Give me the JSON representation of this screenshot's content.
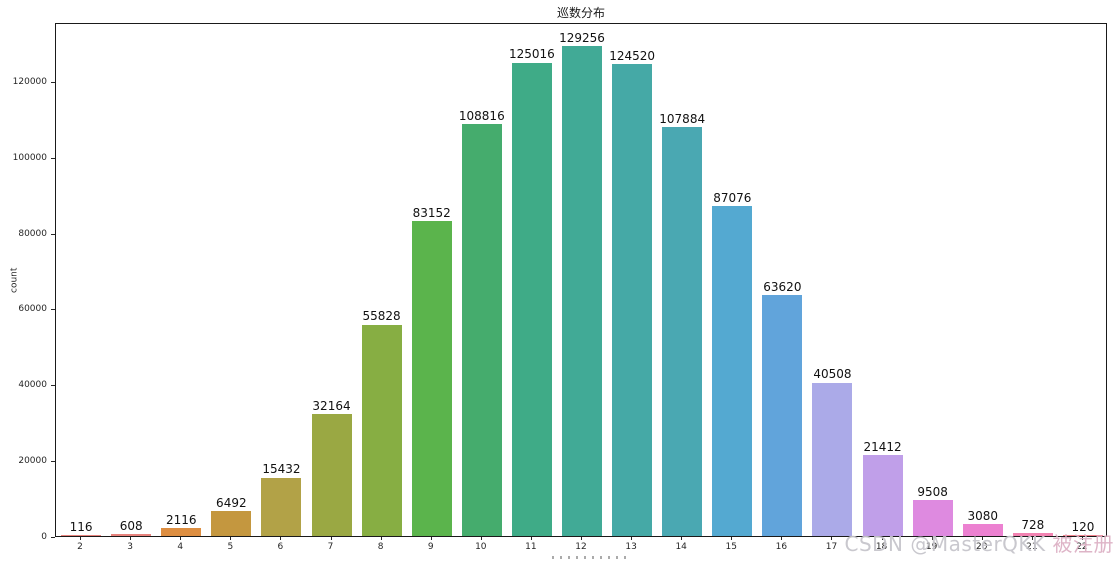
{
  "chart_data": {
    "type": "bar",
    "title": "巡数分布",
    "ylabel": "count",
    "xlabel_clipped": true,
    "categories": [
      "2",
      "3",
      "4",
      "5",
      "6",
      "7",
      "8",
      "9",
      "10",
      "11",
      "12",
      "13",
      "14",
      "15",
      "16",
      "17",
      "18",
      "19",
      "20",
      "21",
      "22"
    ],
    "values": [
      116,
      608,
      2116,
      6492,
      15432,
      32164,
      55828,
      83152,
      108816,
      125016,
      129256,
      124520,
      107884,
      87076,
      63620,
      40508,
      21412,
      9508,
      3080,
      728,
      120
    ],
    "value_labels": [
      "116",
      "608",
      "2116",
      "6492",
      "15432",
      "32164",
      "55828",
      "83152",
      "108816",
      "125016",
      "129256",
      "124520",
      "107884",
      "87076",
      "63620",
      "40508",
      "21412",
      "9508",
      "3080",
      "728",
      "120"
    ],
    "bar_colors": [
      "#e8837d",
      "#e8837d",
      "#dd8e41",
      "#c4973f",
      "#b2a247",
      "#9aa843",
      "#87ae43",
      "#5bb44c",
      "#45ac6d",
      "#3fab87",
      "#41aa96",
      "#45a9a6",
      "#4aa8b2",
      "#54a9d1",
      "#61a4db",
      "#abaae8",
      "#c09fe9",
      "#de8ae0",
      "#ec81d1",
      "#f283b2",
      "#f4838d"
    ],
    "y_ticks": [
      0,
      20000,
      40000,
      60000,
      80000,
      100000,
      120000
    ],
    "y_tick_labels": [
      "0",
      "20000",
      "40000",
      "60000",
      "80000",
      "100000",
      "120000"
    ],
    "ylim": [
      0,
      135719
    ],
    "grid": false,
    "legend": false
  },
  "watermark": {
    "prefix": "CSDN @MasterQKK ",
    "suffix": "被注册"
  }
}
